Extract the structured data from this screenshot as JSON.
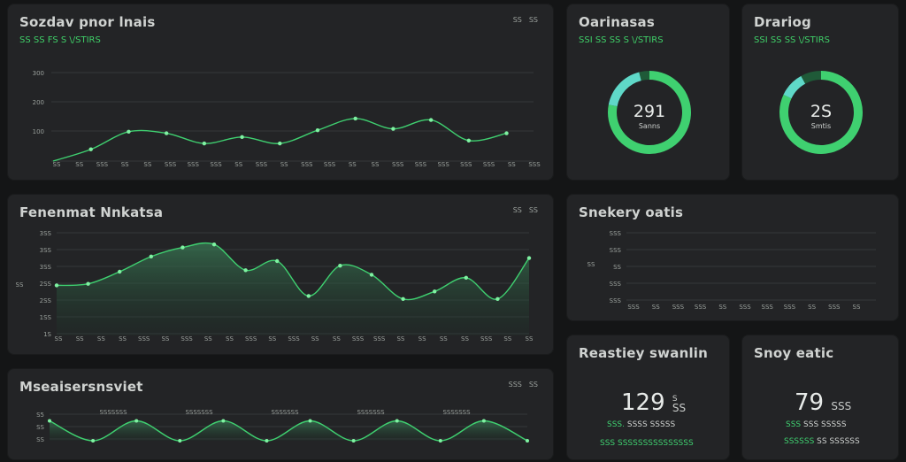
{
  "colors": {
    "accent": "#3fd070",
    "accent_dark": "#1f5a38",
    "teal": "#5fd8c8",
    "panel": "#232426",
    "background": "#141516"
  },
  "top_chart": {
    "title": "Sozdav pnor lnais",
    "subtitle": "SS  SS  FS  S    \\/STIRS",
    "controls": [
      "SS",
      "SS"
    ],
    "y_ticks": [
      "300",
      "200",
      "100"
    ],
    "x_ticks": [
      "SS",
      "SS",
      "SSS",
      "SS",
      "SS",
      "SSS",
      "SSS",
      "SSS",
      "SS",
      "SSS",
      "SS",
      "SSS",
      "SSS",
      "SS",
      "SS",
      "SSS",
      "SSS",
      "SSS",
      "SSS",
      "SSS",
      "SS",
      "SSS"
    ],
    "chart_data": {
      "type": "line",
      "ylim": [
        0,
        350
      ],
      "values": [
        0,
        40,
        100,
        95,
        60,
        82,
        60,
        105,
        145,
        110,
        140,
        70,
        95
      ]
    }
  },
  "mid_chart": {
    "title": "Fenenmat Nnkatsa",
    "controls": [
      "SS",
      "SS"
    ],
    "y_ticks": [
      "3SS",
      "3SS",
      "3SS",
      "2SS",
      "2SS",
      "1SS",
      "1S"
    ],
    "y_side_label": "SS",
    "x_ticks": [
      "SS",
      "SS",
      "SS",
      "SS",
      "SSS",
      "SS",
      "SSS",
      "SS",
      "SS",
      "SSS",
      "SS",
      "SSS",
      "SS",
      "SS",
      "SSS",
      "SSS",
      "SS",
      "SS",
      "SS",
      "SS",
      "SSS",
      "SS",
      "SS"
    ],
    "chart_data": {
      "type": "area",
      "ylim": [
        0,
        350
      ],
      "values": [
        165,
        170,
        210,
        260,
        290,
        300,
        215,
        245,
        130,
        230,
        200,
        120,
        145,
        190,
        120,
        255
      ]
    }
  },
  "bottom_chart": {
    "title": "Mseaisersnsviet",
    "controls": [
      "SSS",
      "SS"
    ],
    "y_ticks": [
      "S5",
      "SS",
      "SS"
    ],
    "peak_labels": [
      "SSSSSSS",
      "SSSSSSS",
      "SSSSSSS",
      "SSSSSSS",
      "SSSSSSS"
    ],
    "chart_data": {
      "type": "area",
      "ylim": [
        0,
        60
      ],
      "values": [
        45,
        0,
        45,
        0,
        45,
        0,
        45,
        0,
        45,
        0,
        45,
        0
      ]
    }
  },
  "ring_left": {
    "title": "Oarinasas",
    "subtitle": "SSI  SS  SS  S   \\/STIRS",
    "value": "291",
    "sub": "Sanns",
    "chart_data": {
      "type": "pie",
      "values": [
        78,
        18,
        4
      ],
      "labels": [
        "green",
        "teal",
        "dark"
      ]
    }
  },
  "ring_right": {
    "title": "Drariog",
    "subtitle": "SSI  SS  SS   \\/STIRS",
    "value": "2S",
    "sub": "Smtis",
    "chart_data": {
      "type": "pie",
      "values": [
        82,
        10,
        8
      ],
      "labels": [
        "green",
        "teal",
        "dark"
      ]
    }
  },
  "bar_panel": {
    "title": "Snekery oatis",
    "y_ticks": [
      "SSS",
      "SSS",
      "SS",
      "SSS",
      "SSS"
    ],
    "y_side_label": "SS",
    "x_ticks": [
      "SSS",
      "SS",
      "SSS",
      "SSS",
      "SS",
      "SSS",
      "SSS",
      "SSS",
      "SS",
      "SSS",
      "SS"
    ]
  },
  "stat_left": {
    "title": "Reastiey swanlin",
    "value": "129",
    "unit_top": "S",
    "unit": "SS",
    "line1_prefix": "SSS.",
    "line1": "SSSS  SSSSS",
    "line2": "SSS  SSSSSSSSSSSSSSS"
  },
  "stat_right": {
    "title": "Snoy eatic",
    "value": "79",
    "unit": "SSS",
    "line1_prefix": "SSS",
    "line1": "SSS SSSSS",
    "line2_prefix": "SSSSSS",
    "line2": "SS SSSSSS"
  }
}
